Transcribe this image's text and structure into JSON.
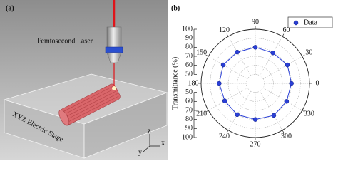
{
  "diagram": {
    "panel_label": "(a)",
    "laser_label": "Femtosecond Laser",
    "stage_label": "XYZ Electric Stage",
    "axes": [
      "z",
      "x",
      "y"
    ]
  },
  "chart_data": {
    "type": "polar",
    "panel_label": "(b)",
    "ylabel": "Transmittance (%)",
    "x": [
      0,
      30,
      60,
      90,
      120,
      150,
      180,
      210,
      240,
      270,
      300,
      330
    ],
    "xticks": [
      0,
      30,
      60,
      90,
      120,
      150,
      180,
      210,
      240,
      270,
      300,
      330
    ],
    "series": [
      {
        "name": "Data",
        "color": "#2a3fd6",
        "values": [
          80,
          81,
          79,
          80,
          80,
          81,
          80,
          79,
          80,
          80,
          81,
          80
        ]
      }
    ],
    "ylim": [
      40,
      100
    ],
    "yticks": [
      50,
      60,
      70,
      80,
      90,
      100
    ],
    "grid": true,
    "legend": "upper right"
  }
}
